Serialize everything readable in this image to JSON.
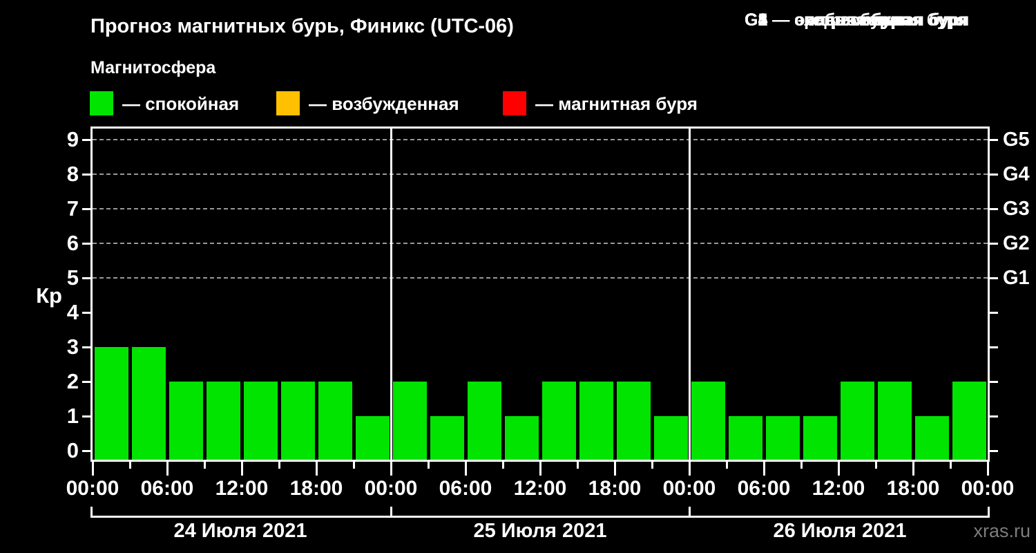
{
  "header": {
    "title": "Прогноз магнитных бурь, Финикс (UTC-06)",
    "subtitle": "Магнитосфера"
  },
  "magnetosphere_legend": [
    {
      "name": "quiet",
      "label": "— спокойная",
      "color": "#00e400",
      "x": 130
    },
    {
      "name": "unsettled",
      "label": "— возбужденная",
      "color": "#ffc000",
      "x": 400
    },
    {
      "name": "storm",
      "label": "— магнитная буря",
      "color": "#ff0000",
      "x": 728
    }
  ],
  "storm_scale_legend": [
    {
      "code": "G1",
      "label": "G1 — слабая буря"
    },
    {
      "code": "G2",
      "label": "G2 — средняя буря"
    },
    {
      "code": "G3",
      "label": "G3 — сильная буря"
    },
    {
      "code": "G4",
      "label": "G4 — очень сильная буря"
    },
    {
      "code": "G5",
      "label": "G5 — экстремальная буря"
    }
  ],
  "footer": {
    "watermark": "xras.ru"
  },
  "chart_data": {
    "type": "bar",
    "title": "Прогноз магнитных бурь, Финикс (UTC-06)",
    "ylabel": "Кр",
    "ylim": [
      0,
      9
    ],
    "y_ticks": [
      0,
      1,
      2,
      3,
      4,
      5,
      6,
      7,
      8,
      9
    ],
    "hours_per_bar": 3,
    "hours_total": 72,
    "x_tick_labels": [
      "00:00",
      "06:00",
      "12:00",
      "18:00",
      "00:00",
      "06:00",
      "12:00",
      "18:00",
      "00:00",
      "06:00",
      "12:00",
      "18:00",
      "00:00"
    ],
    "grid_levels": [
      5,
      6,
      7,
      8,
      9
    ],
    "right_axis": [
      {
        "level": 5,
        "label": "G1"
      },
      {
        "level": 6,
        "label": "G2"
      },
      {
        "level": 7,
        "label": "G3"
      },
      {
        "level": 8,
        "label": "G4"
      },
      {
        "level": 9,
        "label": "G5"
      }
    ],
    "bar_color": "#00e400",
    "grid_on": true,
    "legend_position": "top",
    "days": [
      {
        "date": "24 Июля 2021",
        "kp_values": [
          3,
          3,
          2,
          2,
          2,
          2,
          2,
          1
        ]
      },
      {
        "date": "25 Июля 2021",
        "kp_values": [
          2,
          1,
          2,
          1,
          2,
          2,
          2,
          1
        ]
      },
      {
        "date": "26 Июля 2021",
        "kp_values": [
          2,
          1,
          1,
          1,
          2,
          2,
          1,
          2
        ]
      }
    ]
  },
  "colors": {
    "background": "#000000",
    "axis": "#ffffff",
    "grid": "#999999",
    "watermark": "#7d7d7d"
  }
}
